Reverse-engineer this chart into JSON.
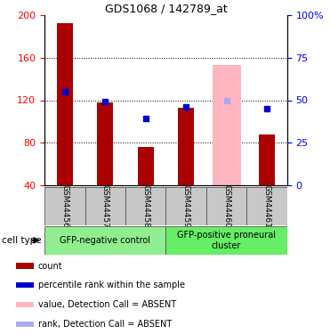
{
  "title": "GDS1068 / 142789_at",
  "samples": [
    "GSM44456",
    "GSM44457",
    "GSM44458",
    "GSM44459",
    "GSM44460",
    "GSM44461"
  ],
  "count_values": [
    192,
    118,
    76,
    113,
    null,
    88
  ],
  "count_absent": [
    null,
    null,
    null,
    null,
    153,
    null
  ],
  "rank_values": [
    128,
    119,
    103,
    114,
    null,
    112
  ],
  "rank_absent": [
    null,
    null,
    null,
    null,
    120,
    null
  ],
  "ylim_left": [
    40,
    200
  ],
  "ylim_right": [
    0,
    100
  ],
  "yticks_left": [
    40,
    80,
    120,
    160,
    200
  ],
  "yticks_right": [
    0,
    25,
    50,
    75,
    100
  ],
  "yticklabels_right": [
    "0",
    "25",
    "50",
    "75",
    "100%"
  ],
  "bar_color": "#AA0000",
  "bar_absent_color": "#FFB6C1",
  "rank_color": "#0000CC",
  "rank_absent_color": "#AAAAEE",
  "group1_label": "GFP-negative control",
  "group2_label": "GFP-positive proneural\ncluster",
  "group1_color": "#90EE90",
  "group2_color": "#66EE66",
  "cell_type_label": "cell type",
  "legend_items": [
    {
      "label": "count",
      "color": "#AA0000"
    },
    {
      "label": "percentile rank within the sample",
      "color": "#0000CC"
    },
    {
      "label": "value, Detection Call = ABSENT",
      "color": "#FFB6C1"
    },
    {
      "label": "rank, Detection Call = ABSENT",
      "color": "#AAAAEE"
    }
  ],
  "bar_width": 0.4,
  "absent_bar_width": 0.7
}
